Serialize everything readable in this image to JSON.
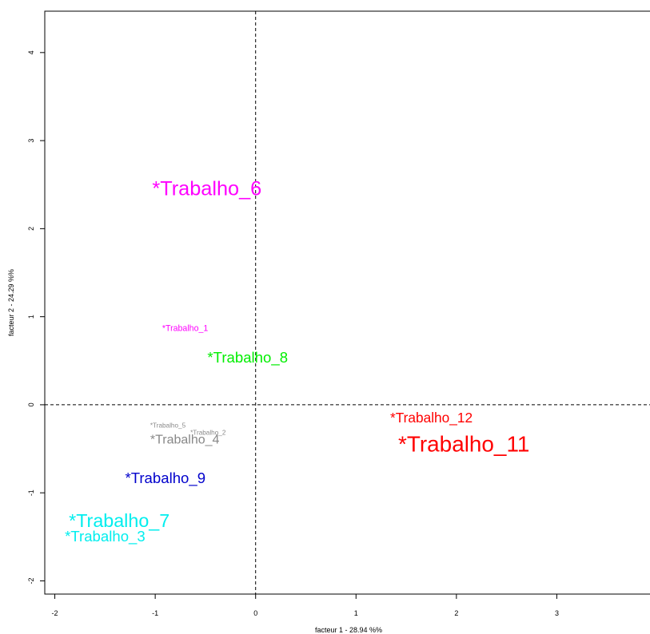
{
  "chart_data": {
    "type": "scatter",
    "xlabel": "facteur  1  - 28.94 %%",
    "ylabel": "facteur  2  - 24.29 %%",
    "xlim": [
      -2.1,
      3.96
    ],
    "ylim": [
      -2.15,
      4.47
    ],
    "x_ticks": [
      {
        "value": -2,
        "label": "-2"
      },
      {
        "value": -1,
        "label": "-1"
      },
      {
        "value": 0,
        "label": "0"
      },
      {
        "value": 1,
        "label": "1"
      },
      {
        "value": 2,
        "label": "2"
      },
      {
        "value": 3,
        "label": "3"
      }
    ],
    "y_ticks": [
      {
        "value": -2,
        "label": "-2"
      },
      {
        "value": -1,
        "label": "-1"
      },
      {
        "value": 0,
        "label": "0"
      },
      {
        "value": 1,
        "label": "1"
      },
      {
        "value": 2,
        "label": "2"
      },
      {
        "value": 3,
        "label": "3"
      },
      {
        "value": 4,
        "label": "4"
      }
    ],
    "reference_lines": {
      "x": 0,
      "y": 0,
      "style": "dashed"
    },
    "grid": false,
    "points": [
      {
        "label": "*Trabalho_6",
        "x": -1.03,
        "y": 2.38,
        "color": "#ff00ff",
        "size": 1.9
      },
      {
        "label": "*Trabalho_1",
        "x": -0.93,
        "y": 0.84,
        "color": "#ff00ff",
        "size": 0.8
      },
      {
        "label": "*Trabalho_8",
        "x": -0.48,
        "y": 0.48,
        "color": "#00ee00",
        "size": 1.4
      },
      {
        "label": "*Trabalho_12",
        "x": 1.34,
        "y": -0.2,
        "color": "#ff0000",
        "size": 1.3
      },
      {
        "label": "*Trabalho_11",
        "x": 1.42,
        "y": -0.53,
        "color": "#ff0000",
        "size": 2.1
      },
      {
        "label": "*Trabalho_5",
        "x": -1.05,
        "y": -0.26,
        "color": "#888888",
        "size": 0.62
      },
      {
        "label": "*Trabalho_2",
        "x": -0.65,
        "y": -0.34,
        "color": "#888888",
        "size": 0.62
      },
      {
        "label": "*Trabalho_4",
        "x": -1.05,
        "y": -0.44,
        "color": "#888888",
        "size": 1.2
      },
      {
        "label": "*Trabalho_9",
        "x": -1.3,
        "y": -0.89,
        "color": "#0000cc",
        "size": 1.4
      },
      {
        "label": "*Trabalho_7",
        "x": -1.86,
        "y": -1.39,
        "color": "#00eeee",
        "size": 1.75
      },
      {
        "label": "*Trabalho_3",
        "x": -1.9,
        "y": -1.55,
        "color": "#00eeee",
        "size": 1.4
      }
    ]
  }
}
